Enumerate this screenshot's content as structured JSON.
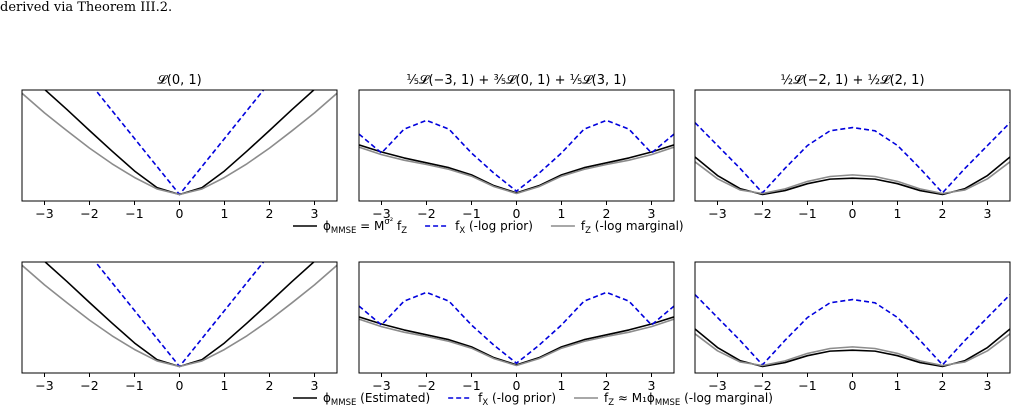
{
  "caption": "derived via Theorem III.2.",
  "colors": {
    "black": "#000000",
    "blue": "#0000dd",
    "gray": "#8c8c8c"
  },
  "xticks": [
    -3,
    -2,
    -1,
    0,
    1,
    2,
    3
  ],
  "xtick_labels": [
    "−3",
    "−2",
    "−1",
    "0",
    "1",
    "2",
    "3"
  ],
  "chart_data": [
    {
      "type": "line",
      "row": 0,
      "col": 0,
      "title": "𝓛(0, 1)",
      "xlim": [
        -3.5,
        3.5
      ],
      "ylim": [
        -0.2,
        3.2
      ],
      "series": [
        {
          "name": "ϕ_MMSE = M^{σ²} f_Z",
          "color": "black",
          "dash": "solid",
          "x": [
            -3.5,
            -3,
            -2.5,
            -2,
            -1.5,
            -1,
            -0.5,
            0,
            0.5,
            1,
            1.5,
            2,
            2.5,
            3,
            3.5
          ],
          "y": [
            3.85,
            3.22,
            2.6,
            1.96,
            1.33,
            0.72,
            0.21,
            0.0,
            0.21,
            0.72,
            1.33,
            1.96,
            2.6,
            3.22,
            3.85
          ]
        },
        {
          "name": "f_X (-log prior)",
          "color": "blue",
          "dash": "dashed",
          "x": [
            -3.5,
            0,
            3.5
          ],
          "y": [
            6.0,
            0.0,
            6.0
          ]
        },
        {
          "name": "f_Z (-log marginal)",
          "color": "gray",
          "dash": "solid",
          "x": [
            -3.5,
            -3,
            -2.5,
            -2,
            -1.5,
            -1,
            -0.5,
            0,
            0.5,
            1,
            1.5,
            2,
            2.5,
            3,
            3.5
          ],
          "y": [
            3.1,
            2.5,
            1.95,
            1.42,
            0.94,
            0.52,
            0.17,
            0.0,
            0.17,
            0.52,
            0.94,
            1.42,
            1.95,
            2.5,
            3.1
          ]
        }
      ]
    },
    {
      "type": "line",
      "row": 0,
      "col": 1,
      "title": "⅕𝓛(−3, 1) + ⅗𝓛(0, 1) + ⅕𝓛(3, 1)",
      "xlim": [
        -3.5,
        3.5
      ],
      "ylim": [
        -0.2,
        3.2
      ],
      "series": [
        {
          "name": "ϕ_MMSE = M^{σ²} f_Z",
          "color": "black",
          "dash": "solid",
          "x": [
            -3.5,
            -3,
            -2.5,
            -2,
            -1.5,
            -1,
            -0.5,
            0,
            0.5,
            1,
            1.5,
            2,
            2.5,
            3,
            3.5
          ],
          "y": [
            1.52,
            1.3,
            1.12,
            0.97,
            0.82,
            0.6,
            0.27,
            0.05,
            0.27,
            0.6,
            0.82,
            0.97,
            1.12,
            1.3,
            1.52
          ]
        },
        {
          "name": "f_X (-log prior)",
          "color": "blue",
          "dash": "dashed",
          "x": [
            -3.5,
            -3,
            -2.5,
            -2,
            -1.5,
            -1,
            -0.5,
            0,
            0.5,
            1,
            1.5,
            2,
            2.5,
            3,
            3.5
          ],
          "y": [
            1.85,
            1.27,
            2.0,
            2.27,
            2.0,
            1.27,
            0.65,
            0.1,
            0.65,
            1.27,
            2.0,
            2.27,
            2.0,
            1.27,
            1.85
          ]
        },
        {
          "name": "f_Z (-log marginal)",
          "color": "gray",
          "dash": "solid",
          "x": [
            -3.5,
            -3,
            -2.5,
            -2,
            -1.5,
            -1,
            -0.5,
            0,
            0.5,
            1,
            1.5,
            2,
            2.5,
            3,
            3.5
          ],
          "y": [
            1.45,
            1.22,
            1.05,
            0.92,
            0.77,
            0.56,
            0.24,
            0.03,
            0.24,
            0.56,
            0.77,
            0.92,
            1.05,
            1.22,
            1.45
          ]
        }
      ]
    },
    {
      "type": "line",
      "row": 0,
      "col": 2,
      "title": "½𝓛(−2, 1) + ½𝓛(2, 1)",
      "xlim": [
        -3.5,
        3.5
      ],
      "ylim": [
        -0.2,
        3.2
      ],
      "series": [
        {
          "name": "ϕ_MMSE = M^{σ²} f_Z",
          "color": "black",
          "dash": "solid",
          "x": [
            -3.5,
            -3,
            -2.5,
            -2,
            -1.5,
            -1,
            -0.5,
            0,
            0.5,
            1,
            1.5,
            2,
            2.5,
            3,
            3.5
          ],
          "y": [
            1.15,
            0.58,
            0.18,
            0.0,
            0.12,
            0.33,
            0.47,
            0.5,
            0.47,
            0.33,
            0.12,
            0.0,
            0.18,
            0.58,
            1.15
          ]
        },
        {
          "name": "f_X (-log prior)",
          "color": "blue",
          "dash": "dashed",
          "x": [
            -3.5,
            -3,
            -2.5,
            -2,
            -1.5,
            -1,
            -0.5,
            0,
            0.5,
            1,
            1.5,
            2,
            2.5,
            3,
            3.5
          ],
          "y": [
            2.2,
            1.5,
            0.8,
            0.05,
            0.8,
            1.5,
            1.95,
            2.05,
            1.95,
            1.5,
            0.8,
            0.05,
            0.8,
            1.5,
            2.2
          ]
        },
        {
          "name": "f_Z (-log marginal)",
          "color": "gray",
          "dash": "solid",
          "x": [
            -3.5,
            -3,
            -2.5,
            -2,
            -1.5,
            -1,
            -0.5,
            0,
            0.5,
            1,
            1.5,
            2,
            2.5,
            3,
            3.5
          ],
          "y": [
            1.0,
            0.48,
            0.14,
            0.03,
            0.17,
            0.4,
            0.55,
            0.6,
            0.55,
            0.4,
            0.17,
            0.03,
            0.14,
            0.48,
            1.0
          ]
        }
      ]
    },
    {
      "type": "line",
      "row": 1,
      "col": 0,
      "title": "",
      "xlim": [
        -3.5,
        3.5
      ],
      "ylim": [
        -0.2,
        3.2
      ],
      "series": [
        {
          "name": "ϕ_MMSE (Estimated)",
          "color": "black",
          "dash": "solid",
          "x": [
            -3.5,
            -3,
            -2.5,
            -2,
            -1.5,
            -1,
            -0.5,
            0,
            0.5,
            1,
            1.5,
            2,
            2.5,
            3,
            3.5
          ],
          "y": [
            3.85,
            3.22,
            2.6,
            1.96,
            1.33,
            0.72,
            0.21,
            0.0,
            0.21,
            0.72,
            1.33,
            1.96,
            2.6,
            3.22,
            3.85
          ]
        },
        {
          "name": "f_X (-log prior)",
          "color": "blue",
          "dash": "dashed",
          "x": [
            -3.5,
            0,
            3.5
          ],
          "y": [
            6.0,
            0.0,
            6.0
          ]
        },
        {
          "name": "f_Z ≈ M₁ϕ_MMSE (-log marginal)",
          "color": "gray",
          "dash": "solid",
          "x": [
            -3.5,
            -3,
            -2.5,
            -2,
            -1.5,
            -1,
            -0.5,
            0,
            0.5,
            1,
            1.5,
            2,
            2.5,
            3,
            3.5
          ],
          "y": [
            3.1,
            2.5,
            1.95,
            1.42,
            0.94,
            0.52,
            0.17,
            0.0,
            0.17,
            0.52,
            0.94,
            1.42,
            1.95,
            2.5,
            3.1
          ]
        }
      ]
    },
    {
      "type": "line",
      "row": 1,
      "col": 1,
      "title": "",
      "xlim": [
        -3.5,
        3.5
      ],
      "ylim": [
        -0.2,
        3.2
      ],
      "series": [
        {
          "name": "ϕ_MMSE (Estimated)",
          "color": "black",
          "dash": "solid",
          "x": [
            -3.5,
            -3,
            -2.5,
            -2,
            -1.5,
            -1,
            -0.5,
            0,
            0.5,
            1,
            1.5,
            2,
            2.5,
            3,
            3.5
          ],
          "y": [
            1.52,
            1.3,
            1.12,
            0.97,
            0.82,
            0.6,
            0.27,
            0.05,
            0.27,
            0.6,
            0.82,
            0.97,
            1.12,
            1.3,
            1.52
          ]
        },
        {
          "name": "f_X (-log prior)",
          "color": "blue",
          "dash": "dashed",
          "x": [
            -3.5,
            -3,
            -2.5,
            -2,
            -1.5,
            -1,
            -0.5,
            0,
            0.5,
            1,
            1.5,
            2,
            2.5,
            3,
            3.5
          ],
          "y": [
            1.85,
            1.27,
            2.0,
            2.27,
            2.0,
            1.27,
            0.65,
            0.1,
            0.65,
            1.27,
            2.0,
            2.27,
            2.0,
            1.27,
            1.85
          ]
        },
        {
          "name": "f_Z ≈ M₁ϕ_MMSE (-log marginal)",
          "color": "gray",
          "dash": "solid",
          "x": [
            -3.5,
            -3,
            -2.5,
            -2,
            -1.5,
            -1,
            -0.5,
            0,
            0.5,
            1,
            1.5,
            2,
            2.5,
            3,
            3.5
          ],
          "y": [
            1.45,
            1.22,
            1.05,
            0.92,
            0.77,
            0.56,
            0.24,
            0.03,
            0.24,
            0.56,
            0.77,
            0.92,
            1.05,
            1.22,
            1.45
          ]
        }
      ]
    },
    {
      "type": "line",
      "row": 1,
      "col": 2,
      "title": "",
      "xlim": [
        -3.5,
        3.5
      ],
      "ylim": [
        -0.2,
        3.2
      ],
      "series": [
        {
          "name": "ϕ_MMSE (Estimated)",
          "color": "black",
          "dash": "solid",
          "x": [
            -3.5,
            -3,
            -2.5,
            -2,
            -1.5,
            -1,
            -0.5,
            0,
            0.5,
            1,
            1.5,
            2,
            2.5,
            3,
            3.5
          ],
          "y": [
            1.15,
            0.58,
            0.18,
            0.0,
            0.12,
            0.33,
            0.47,
            0.5,
            0.47,
            0.33,
            0.12,
            0.0,
            0.18,
            0.58,
            1.15
          ]
        },
        {
          "name": "f_X (-log prior)",
          "color": "blue",
          "dash": "dashed",
          "x": [
            -3.5,
            -3,
            -2.5,
            -2,
            -1.5,
            -1,
            -0.5,
            0,
            0.5,
            1,
            1.5,
            2,
            2.5,
            3,
            3.5
          ],
          "y": [
            2.2,
            1.5,
            0.8,
            0.05,
            0.8,
            1.5,
            1.95,
            2.05,
            1.95,
            1.5,
            0.8,
            0.05,
            0.8,
            1.5,
            2.2
          ]
        },
        {
          "name": "f_Z ≈ M₁ϕ_MMSE (-log marginal)",
          "color": "gray",
          "dash": "solid",
          "x": [
            -3.5,
            -3,
            -2.5,
            -2,
            -1.5,
            -1,
            -0.5,
            0,
            0.5,
            1,
            1.5,
            2,
            2.5,
            3,
            3.5
          ],
          "y": [
            1.0,
            0.48,
            0.14,
            0.03,
            0.17,
            0.4,
            0.55,
            0.6,
            0.55,
            0.4,
            0.17,
            0.03,
            0.14,
            0.48,
            1.0
          ]
        }
      ]
    }
  ],
  "legends": [
    {
      "row": 0,
      "entries": [
        {
          "color": "black",
          "dash": "solid",
          "label": "ϕ_MMSE = M^{σ²} f_Z"
        },
        {
          "color": "blue",
          "dash": "dashed",
          "label": "f_X (-log prior)"
        },
        {
          "color": "gray",
          "dash": "solid",
          "label": "f_Z (-log marginal)"
        }
      ]
    },
    {
      "row": 1,
      "entries": [
        {
          "color": "black",
          "dash": "solid",
          "label": "ϕ_MMSE (Estimated)"
        },
        {
          "color": "blue",
          "dash": "dashed",
          "label": "f_X (-log prior)"
        },
        {
          "color": "gray",
          "dash": "solid",
          "label": "f_Z ≈ M₁ϕ_MMSE (-log marginal)"
        }
      ]
    }
  ]
}
